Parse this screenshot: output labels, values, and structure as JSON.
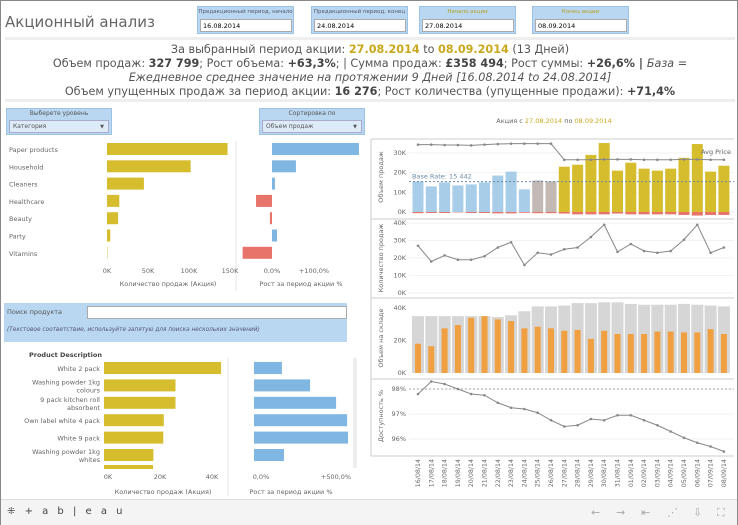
{
  "header": {
    "title": "Акционный анализ",
    "filters": [
      {
        "label": "Предакционный период, начало",
        "value": "16.08.2014"
      },
      {
        "label": "Предакционный период, конец",
        "value": "24.08.2014"
      },
      {
        "label": "Начало акции",
        "value": "27.08.2014"
      },
      {
        "label": "Конец акции",
        "value": "08.09.2014"
      }
    ]
  },
  "summary": {
    "l1a": "За выбранный период акции: ",
    "l1b": "27.08.2014",
    "l1c": " to ",
    "l1d": "08.09.2014",
    "l1e": " (13 Дней)",
    "l2a": "Объем продаж: ",
    "l2b": "327 799",
    "l2c": "; Рост объема: ",
    "l2d": "+63,3%",
    "l2e": "; | Сумма продаж: ",
    "l2f": "£358 494",
    "l2g": "; Рост суммы: ",
    "l2h": "+26,6%",
    "l2i": " | ",
    "l2j": "База = Ежедневное среднее значение на протяжении 9 Дней [16.08.2014 to 24.08.2014]",
    "l3a": "Объем упущенных продаж за период акции: ",
    "l3b": "16 276",
    "l3c": "; Рост количества (упущенные продажи): ",
    "l3d": "+71,4%"
  },
  "controls": {
    "level_label": "Выберете уровень",
    "level_value": "Категория",
    "sort_label": "Сортировка по",
    "sort_value": "Объем продаж",
    "search_label": "Поиск продукта",
    "search_value": "",
    "search_hint": "(Текстовое соответствие, используйте запятую для поиска нескольких значений)"
  },
  "colors": {
    "pre": "#a8cde8",
    "gap": "#c2b8b4",
    "promo": "#d6bd2e",
    "neg": "#e8736a",
    "pos": "#7fb6e2",
    "stock": "#d6d6d6",
    "stock_sales": "#f0a040",
    "line": "#888888"
  },
  "chart_data": [
    {
      "type": "bar",
      "id": "category",
      "xlabel": "Количество продаж (Акция)",
      "ticks": [
        "0K",
        "50K",
        "100K",
        "150K"
      ],
      "xlim": [
        0,
        150000
      ],
      "categories": [
        "Paper products",
        "Household",
        "Cleaners",
        "Healthcare",
        "Beauty",
        "Party",
        "Vitamins"
      ],
      "values": [
        147000,
        102000,
        45000,
        15000,
        13500,
        4000,
        500
      ]
    },
    {
      "type": "bar",
      "id": "category-growth",
      "xlabel": "Рост за период акции %",
      "ticks": [
        "0,0%",
        "+100,0%"
      ],
      "categories": [
        "Paper products",
        "Household",
        "Cleaners",
        "Healthcare",
        "Beauty",
        "Party",
        "Vitamins"
      ],
      "values": [
        207,
        57,
        7,
        -38,
        -5,
        12,
        -70
      ]
    },
    {
      "type": "bar",
      "id": "product",
      "header": "Product Description",
      "xlabel": "Количество продаж (Акция)",
      "ticks": [
        "0K",
        "20K",
        "40K"
      ],
      "categories": [
        [
          "White 2 pack"
        ],
        [
          "Washing powder 1kg",
          "colours"
        ],
        [
          "9 pack kitchen roll",
          "absorbent"
        ],
        [
          "Own label white 4 pack"
        ],
        [
          "White 9 pack"
        ],
        [
          "Washing powder 1kg",
          "whites"
        ]
      ],
      "values": [
        45000,
        27500,
        27500,
        23000,
        22800,
        19000
      ]
    },
    {
      "type": "bar",
      "id": "product-growth",
      "xlabel": "Рост за период акции %",
      "ticks": [
        "0,0%",
        "+500,0%"
      ],
      "values": [
        147,
        295,
        432,
        490,
        495,
        158
      ]
    },
    {
      "type": "bar+line",
      "id": "daily",
      "title_a": "Акция с ",
      "title_b": "27.08.2014",
      "title_c": " по ",
      "title_d": "08.09.2014",
      "x": [
        "16/08/14",
        "17/08/14",
        "18/08/14",
        "19/08/14",
        "20/08/14",
        "21/08/14",
        "22/08/14",
        "23/08/14",
        "24/08/14",
        "25/08/14",
        "26/08/14",
        "27/08/14",
        "28/08/14",
        "29/08/14",
        "30/08/14",
        "31/08/14",
        "01/09/14",
        "02/09/14",
        "03/09/14",
        "04/09/14",
        "05/09/14",
        "06/09/14",
        "07/09/14",
        "08/09/14"
      ],
      "period": [
        "pre",
        "pre",
        "pre",
        "pre",
        "pre",
        "pre",
        "pre",
        "pre",
        "pre",
        "gap",
        "gap",
        "promo",
        "promo",
        "promo",
        "promo",
        "promo",
        "promo",
        "promo",
        "promo",
        "promo",
        "promo",
        "promo",
        "promo",
        "promo"
      ],
      "sales": {
        "ylabel": "Объем продаж",
        "ticks": [
          "0K",
          "10K",
          "20K",
          "30K"
        ],
        "base_rate_label": "Base Rate: 15 442",
        "base_rate": 15442,
        "avg_price_label": "Avg Price",
        "values": [
          15.5,
          13,
          15,
          13.5,
          14,
          15,
          18.5,
          20.5,
          11.5,
          16,
          15.5,
          23,
          24,
          29,
          35,
          21,
          25,
          22,
          21,
          22,
          27.5,
          34.5,
          20.5,
          23.5
        ],
        "lost": [
          -0.6,
          -0.5,
          -0.5,
          -0.2,
          -0.5,
          -0.5,
          -0.7,
          -0.7,
          -0.4,
          -0.6,
          -0.6,
          -0.8,
          -1.2,
          -1.2,
          -1.2,
          -0.8,
          -1.2,
          -1.2,
          -1.2,
          -1.2,
          -1.5,
          -1.8,
          -1.5,
          -1.5
        ],
        "avg_price": [
          34.2,
          34.2,
          34,
          34,
          33.8,
          34.2,
          34.5,
          34.7,
          34.7,
          34.7,
          34.7,
          26.5,
          26.5,
          26.5,
          26.7,
          26.7,
          26.7,
          26.5,
          26.5,
          26.5,
          26.7,
          26.7,
          26.5,
          26.5
        ]
      },
      "quantity": {
        "ylabel": "Количество продаж",
        "ticks": [
          "0K",
          "10K",
          "20K",
          "30K",
          "40K"
        ],
        "values": [
          27,
          18,
          21.5,
          19,
          19,
          21,
          26,
          29,
          16,
          23,
          22,
          25,
          26,
          32,
          39,
          23.5,
          28,
          24,
          23,
          24,
          30.5,
          39,
          23,
          26
        ]
      },
      "stock": {
        "ylabel": "Объем на складе",
        "ticks": [
          "0K",
          "20K",
          "40K"
        ],
        "total": [
          35,
          35,
          35,
          35,
          35,
          35,
          34.5,
          35.5,
          38,
          41,
          41,
          41.5,
          43,
          43,
          43.5,
          43.5,
          42.5,
          42,
          42,
          42,
          42.5,
          42,
          41.5,
          41
        ],
        "sold": [
          18,
          16.5,
          27.5,
          29.5,
          34,
          35,
          33,
          32,
          27.5,
          28.5,
          27.5,
          26,
          26.5,
          21,
          26,
          24,
          24,
          24,
          25.5,
          25.5,
          25,
          25,
          27,
          24
        ]
      },
      "availability": {
        "ylabel": "Доступность %",
        "ticks": [
          "96%",
          "97%",
          "98%"
        ],
        "reference": 98,
        "values": [
          97.8,
          98.3,
          98.2,
          98.0,
          97.8,
          97.75,
          97.45,
          97.25,
          97.2,
          97.05,
          96.75,
          96.5,
          96.55,
          96.8,
          96.75,
          96.95,
          96.95,
          96.75,
          96.55,
          96.3,
          96.05,
          95.85,
          95.7,
          95.5
        ]
      }
    }
  ],
  "footer": {
    "logo": "+ a b | e a u",
    "icons": [
      "undo-icon",
      "redo-icon",
      "revert-icon",
      "share-icon",
      "download-icon",
      "fullscreen-icon"
    ]
  }
}
